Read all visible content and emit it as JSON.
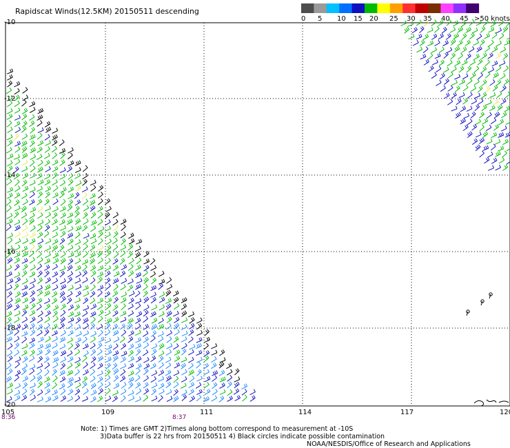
{
  "title": "Rapidscat Winds(12.5KM) 20150511 descending",
  "legend": {
    "labels": [
      "0",
      "5",
      "10",
      "15",
      "20",
      "25",
      "30",
      "35",
      "40",
      "45",
      ">50 knots"
    ],
    "colors": [
      "#4d4d4d",
      "#9a9a9a",
      "#00c0ff",
      "#0070ff",
      "#1010c0",
      "#00bb00",
      "#ffff00",
      "#ffa000",
      "#ff3030",
      "#c00000",
      "#7a2e00",
      "#ff40ff",
      "#9030ff",
      "#400070"
    ]
  },
  "map": {
    "lon_labels": [
      "105",
      "109",
      "111",
      "114",
      "117",
      "120"
    ],
    "lat_labels": [
      "-10",
      "-12",
      "-14",
      "-16",
      "-18",
      "-20"
    ],
    "lon_range": [
      105,
      120
    ],
    "lat_range": [
      -10,
      -20
    ],
    "grid": true,
    "time_labels": [
      "8:36",
      "8:37"
    ],
    "swaths": [
      {
        "name": "western swath",
        "wind_colors": [
          "#00bb00",
          "#1010c0",
          "#1e88ff",
          "#e8e85a"
        ],
        "direction": "north-west to south"
      },
      {
        "name": "eastern swath",
        "wind_colors": [
          "#00bb00",
          "#1010c0",
          "#e8e85a"
        ],
        "direction": "north-east"
      }
    ]
  },
  "notes": [
    "Note: 1) Times are GMT 2)Times along bottom correspond to measurement at -10S",
    "3)Data buffer is 22 hrs from 20150511 4) Black circles indicate possible contamination",
    "NOAA/NESDIS/Office of Research and Applications"
  ]
}
